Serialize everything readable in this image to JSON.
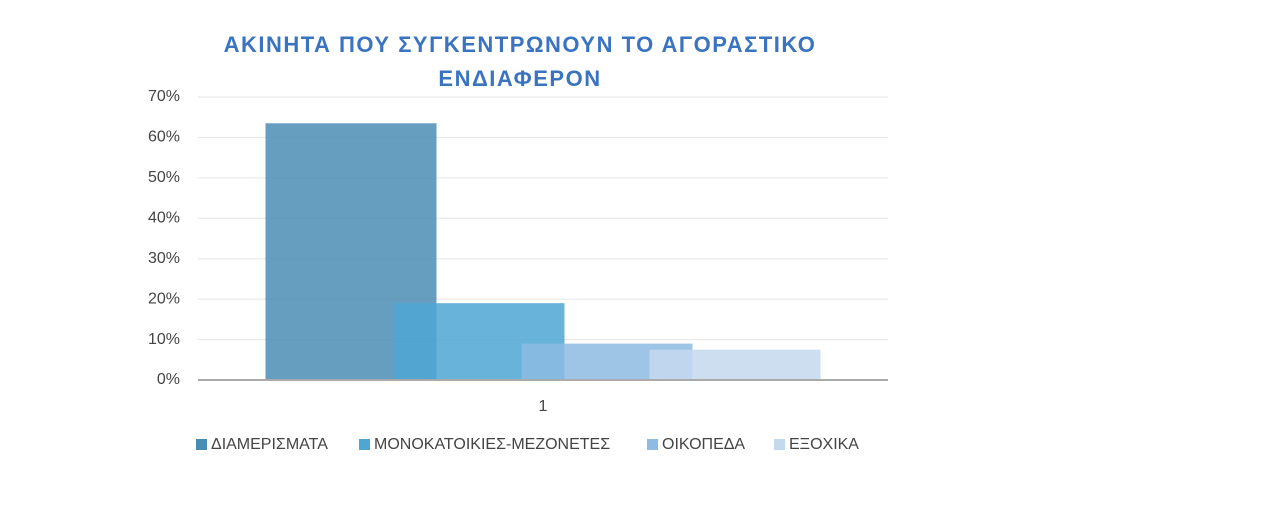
{
  "chart_data": {
    "type": "bar",
    "title": "ΑΚΙΝΗΤΑ ΠΟΥ ΣΥΓΚΕΝΤΡΩΝΟΥΝ ΤΟ ΑΓΟΡΑΣΤΙΚΟ ΕΝΔΙΑΦΕΡΟΝ",
    "categories": [
      "1"
    ],
    "series": [
      {
        "name": "ΔΙΑΜΕΡΙΣΜΑΤΑ",
        "color": "#4a8db4",
        "values": [
          63.5
        ]
      },
      {
        "name": "ΜΟΝΟΚΑΤΟΙΚΙΕΣ-ΜΕΖΟΝΕΤΕΣ",
        "color": "#4ea6d2",
        "values": [
          19
        ]
      },
      {
        "name": "ΟΙΚΟΠΕΔΑ",
        "color": "#8dbbe2",
        "values": [
          9
        ]
      },
      {
        "name": "ΕΞΟΧΙΚΑ",
        "color": "#c4d8ee",
        "values": [
          7.5
        ]
      }
    ],
    "ylim": [
      0,
      70
    ],
    "yticks": [
      {
        "value": 0,
        "label": "0%"
      },
      {
        "value": 10,
        "label": "10%"
      },
      {
        "value": 20,
        "label": "20%"
      },
      {
        "value": 30,
        "label": "30%"
      },
      {
        "value": 40,
        "label": "40%"
      },
      {
        "value": 50,
        "label": "50%"
      },
      {
        "value": 60,
        "label": "60%"
      },
      {
        "value": 70,
        "label": "70%"
      }
    ],
    "grid": true,
    "legend": "bottom"
  }
}
